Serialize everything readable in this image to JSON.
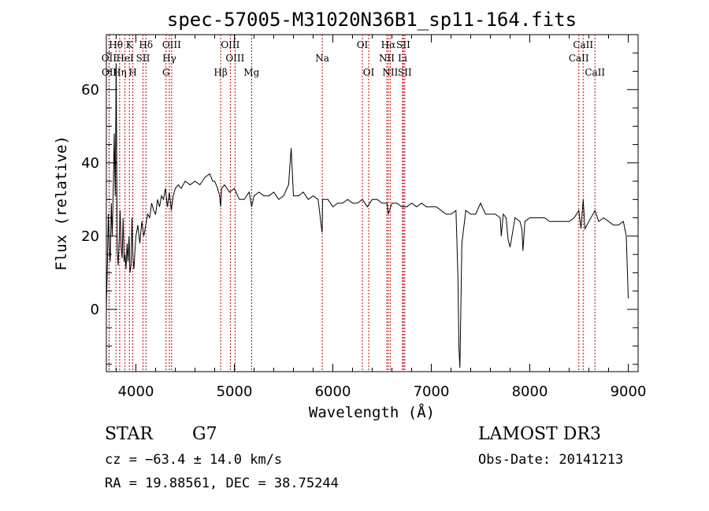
{
  "chart_data": {
    "type": "line",
    "title": "spec-57005-M31020N36B1_sp11-164.fits",
    "xlabel": "Wavelength (Å)",
    "ylabel": "Flux (relative)",
    "xlim": [
      3700,
      9100
    ],
    "ylim": [
      -17,
      75
    ],
    "xticks": [
      4000,
      5000,
      6000,
      7000,
      8000,
      9000
    ],
    "yticks": [
      0,
      20,
      40,
      60
    ],
    "grid": false,
    "line_color": "#000000",
    "marker_color": "#c00000",
    "spectrum": {
      "x": [
        3700,
        3710,
        3720,
        3730,
        3740,
        3750,
        3760,
        3770,
        3780,
        3790,
        3800,
        3810,
        3820,
        3830,
        3840,
        3850,
        3860,
        3870,
        3880,
        3890,
        3900,
        3910,
        3920,
        3930,
        3940,
        3950,
        3960,
        3970,
        3980,
        3990,
        4000,
        4020,
        4040,
        4060,
        4080,
        4100,
        4120,
        4140,
        4160,
        4180,
        4200,
        4220,
        4240,
        4260,
        4280,
        4300,
        4320,
        4340,
        4360,
        4380,
        4400,
        4430,
        4460,
        4500,
        4550,
        4600,
        4650,
        4700,
        4750,
        4780,
        4800,
        4830,
        4850,
        4861,
        4870,
        4900,
        4950,
        5000,
        5050,
        5100,
        5150,
        5175,
        5200,
        5250,
        5300,
        5350,
        5400,
        5450,
        5500,
        5550,
        5577,
        5600,
        5650,
        5700,
        5750,
        5800,
        5850,
        5890,
        5893,
        5896,
        5950,
        6000,
        6050,
        6100,
        6150,
        6200,
        6250,
        6300,
        6350,
        6400,
        6450,
        6500,
        6550,
        6563,
        6600,
        6650,
        6700,
        6750,
        6800,
        6850,
        6900,
        6950,
        7000,
        7050,
        7100,
        7150,
        7200,
        7250,
        7270,
        7280,
        7290,
        7310,
        7350,
        7400,
        7450,
        7500,
        7550,
        7600,
        7650,
        7700,
        7710,
        7730,
        7760,
        7780,
        7800,
        7850,
        7900,
        7920,
        7930,
        7950,
        8000,
        8050,
        8100,
        8150,
        8200,
        8250,
        8300,
        8350,
        8400,
        8450,
        8498,
        8520,
        8542,
        8560,
        8600,
        8662,
        8700,
        8750,
        8800,
        8850,
        8900,
        8950,
        8980,
        9000
      ],
      "y": [
        0,
        12,
        26,
        17,
        13,
        29,
        20,
        33,
        48,
        31,
        67,
        16,
        12,
        19,
        27,
        17,
        14,
        25,
        13,
        15,
        11,
        18,
        13,
        20,
        10,
        12,
        25,
        14,
        11,
        16,
        20,
        23,
        18,
        24,
        20,
        23,
        26,
        25,
        29,
        27,
        26,
        30,
        28,
        31,
        30,
        33,
        28,
        32,
        27,
        31,
        33,
        34,
        33,
        35,
        34,
        35,
        34,
        36,
        37,
        35,
        35,
        33,
        31,
        28,
        33,
        34,
        32,
        33,
        30,
        30,
        32,
        28,
        31,
        32,
        31,
        31,
        32,
        30,
        31,
        34,
        44,
        31,
        31,
        32,
        30,
        31,
        30,
        21,
        23,
        30,
        30,
        28,
        29,
        29,
        30,
        29,
        29,
        30,
        28,
        30,
        30,
        29,
        29,
        26,
        29,
        29,
        28,
        28,
        29,
        28,
        29,
        28,
        28,
        28,
        27,
        26,
        26,
        27,
        9,
        -10,
        -16,
        18,
        27,
        26,
        26,
        29,
        26,
        26,
        26,
        25,
        20,
        26,
        25,
        19,
        17,
        25,
        24,
        22,
        16,
        24,
        25,
        25,
        25,
        25,
        24,
        24,
        24,
        24,
        24,
        25,
        27,
        22,
        30,
        22,
        24,
        27,
        24,
        25,
        24,
        23,
        23,
        24,
        20,
        3
      ]
    },
    "spectral_lines": [
      {
        "name": "Hθ",
        "wavelength": 3797,
        "row": 1
      },
      {
        "name": "K",
        "wavelength": 3934,
        "row": 1
      },
      {
        "name": "Hδ",
        "wavelength": 4102,
        "row": 1
      },
      {
        "name": "OIII",
        "wavelength": 4363,
        "row": 1
      },
      {
        "name": "OIII",
        "wavelength": 4959,
        "row": 1
      },
      {
        "name": "OI",
        "wavelength": 6300,
        "row": 1
      },
      {
        "name": "Hα",
        "wavelength": 6563,
        "row": 1
      },
      {
        "name": "SII",
        "wavelength": 6716,
        "row": 1
      },
      {
        "name": "CaII",
        "wavelength": 8542,
        "row": 1
      },
      {
        "name": "OII",
        "wavelength": 3727,
        "row": 2
      },
      {
        "name": "HeI",
        "wavelength": 3889,
        "row": 2
      },
      {
        "name": "SII",
        "wavelength": 4072,
        "row": 2
      },
      {
        "name": "Hγ",
        "wavelength": 4340,
        "row": 2
      },
      {
        "name": "OIII",
        "wavelength": 5007,
        "row": 2
      },
      {
        "name": "Na",
        "wavelength": 5893,
        "row": 2
      },
      {
        "name": "NII",
        "wavelength": 6548,
        "row": 2
      },
      {
        "name": "Li",
        "wavelength": 6708,
        "row": 2
      },
      {
        "name": "CaII",
        "wavelength": 8498,
        "row": 2
      },
      {
        "name": "OII",
        "wavelength": 3729,
        "row": 3
      },
      {
        "name": "Hη",
        "wavelength": 3835,
        "row": 3
      },
      {
        "name": "H",
        "wavelength": 3969,
        "row": 3
      },
      {
        "name": "G",
        "wavelength": 4306,
        "row": 3
      },
      {
        "name": "Hβ",
        "wavelength": 4861,
        "row": 3
      },
      {
        "name": "Mg",
        "wavelength": 5175,
        "row": 3
      },
      {
        "name": "OI",
        "wavelength": 6364,
        "row": 3
      },
      {
        "name": "NII",
        "wavelength": 6583,
        "row": 3
      },
      {
        "name": "SII",
        "wavelength": 6731,
        "row": 3
      },
      {
        "name": "CaII",
        "wavelength": 8662,
        "row": 3
      }
    ]
  },
  "info": {
    "class": "STAR",
    "subclass": "G7",
    "survey": "LAMOST DR3",
    "cz": "cz = −63.4 ± 14.0 km/s",
    "obs_date": "Obs-Date: 20141213",
    "coords": "RA =  19.88561, DEC =  38.75244"
  }
}
